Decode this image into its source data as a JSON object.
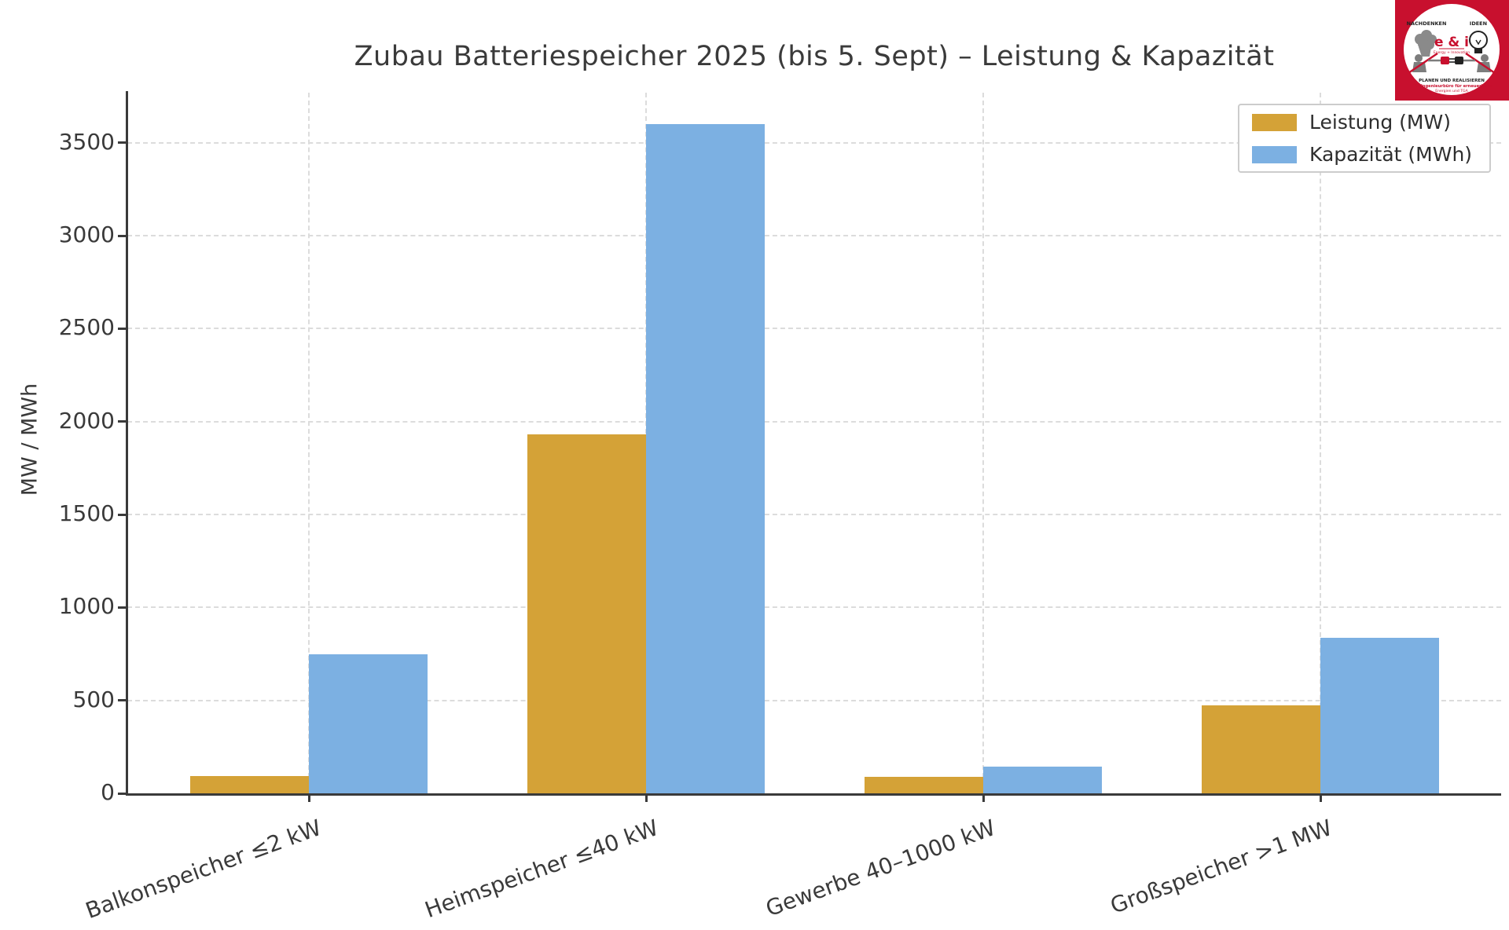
{
  "title": "Zubau Batteriespeicher 2025 (bis 5. Sept) – Leistung & Kapazität",
  "chart_data": {
    "type": "bar",
    "categories": [
      "Balkonspeicher ≤2 kW",
      "Heimspeicher ≤40 kW",
      "Gewerbe 40–1000 kW",
      "Großspeicher >1 MW"
    ],
    "series": [
      {
        "name": "Leistung (MW)",
        "color": "#D4A237",
        "values": [
          95,
          1930,
          90,
          475
        ]
      },
      {
        "name": "Kapazität (MWh)",
        "color": "#7CB0E2",
        "values": [
          750,
          3600,
          145,
          835
        ]
      }
    ],
    "title": "Zubau Batteriespeicher 2025 (bis 5. Sept) – Leistung & Kapazität",
    "xlabel": "",
    "ylabel": "MW / MWh",
    "yticks": [
      0,
      500,
      1000,
      1500,
      2000,
      2500,
      3000,
      3500
    ],
    "ylim": [
      0,
      3770
    ],
    "grid": "dashed-both-axes",
    "legend_position": "top-right",
    "x_tick_label_rotation_deg": 20
  },
  "colors": {
    "leistung": "#D4A237",
    "kapazitaet": "#7CB0E2",
    "axis": "#3a3a3a",
    "grid": "#dcdcdc",
    "logo_red": "#c8102e"
  },
  "logo": {
    "top_left_text": "NACHDENKEN",
    "top_right_text": "IDEEN",
    "brand": "e & i",
    "brand_sub": "Energy + Innovation",
    "line1": "PLANEN UND REALISIEREN",
    "line2": "E&I Ingenieurbüro für erneuerbare",
    "line3": "Energien und TGA"
  }
}
